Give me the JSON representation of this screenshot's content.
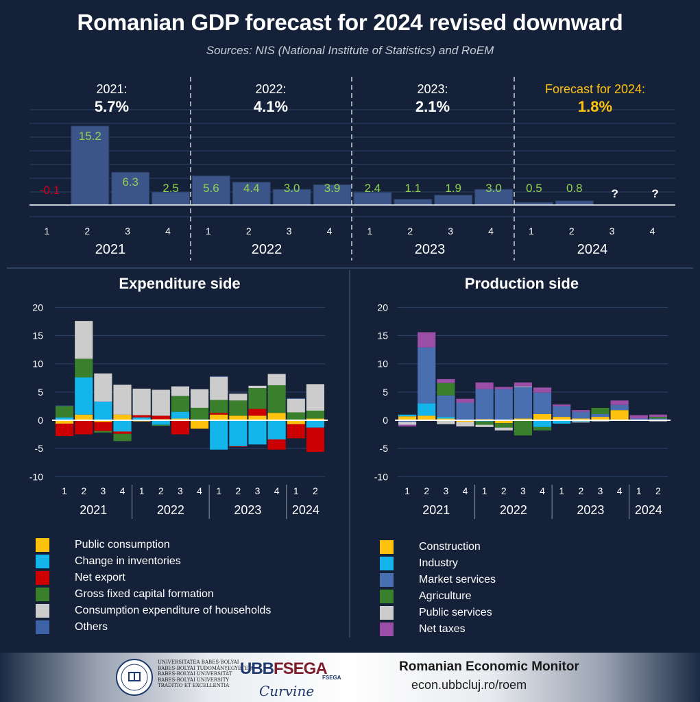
{
  "header": {
    "title": "Romanian GDP forecast for 2024 revised downward",
    "subtitle": "Sources: NIS (National Institute of Statistics) and RoEM"
  },
  "colors": {
    "background": "#142138",
    "bar_blue": "#3b5588",
    "value_green": "#8fd14f",
    "value_red": "#d0021b",
    "forecast_yellow": "#ffc20e",
    "public_consumption": "#ffc20e",
    "change_in_inventories": "#13b5ea",
    "net_export": "#cc0000",
    "gross_fixed_capital_formation": "#3a7f2c",
    "consumption_households": "#cccccc",
    "others": "#3d63a6",
    "construction": "#ffc20e",
    "industry": "#13b5ea",
    "market_services": "#4a6fb0",
    "agriculture": "#3a7f2c",
    "public_services": "#cccccc",
    "net_taxes": "#9b4ea6"
  },
  "annual_summary": [
    {
      "label": "2021:",
      "value": "5.7%",
      "highlight": false
    },
    {
      "label": "2022:",
      "value": "4.1%",
      "highlight": false
    },
    {
      "label": "2023:",
      "value": "2.1%",
      "highlight": false
    },
    {
      "label": "Forecast for 2024:",
      "value": "1.8%",
      "highlight": true
    }
  ],
  "quarter_labels": [
    "1",
    "2",
    "3",
    "4"
  ],
  "year_labels": [
    "2021",
    "2022",
    "2023",
    "2024"
  ],
  "unknown_marker": "?",
  "chart_data": [
    {
      "type": "bar",
      "title": "",
      "categories": [
        "2021 Q1",
        "2021 Q2",
        "2021 Q3",
        "2021 Q4",
        "2022 Q1",
        "2022 Q2",
        "2022 Q3",
        "2022 Q4",
        "2023 Q1",
        "2023 Q2",
        "2023 Q3",
        "2023 Q4",
        "2024 Q1",
        "2024 Q2",
        "2024 Q3",
        "2024 Q4"
      ],
      "values": [
        -0.1,
        15.2,
        6.3,
        2.5,
        5.6,
        4.4,
        3.0,
        3.9,
        2.4,
        1.1,
        1.9,
        3.0,
        0.5,
        0.8,
        null,
        null
      ],
      "value_labels": [
        "-0.1",
        "15.2",
        "6.3",
        "2.5",
        "5.6",
        "4.4",
        "3.0",
        "3.9",
        "2.4",
        "1.1",
        "1.9",
        "3.0",
        "0.5",
        "0.8",
        "?",
        "?"
      ],
      "grid": true
    },
    {
      "type": "bar",
      "stacked": true,
      "title": "Expenditure side",
      "categories": [
        "2021 Q1",
        "2021 Q2",
        "2021 Q3",
        "2021 Q4",
        "2022 Q1",
        "2022 Q2",
        "2022 Q3",
        "2022 Q4",
        "2023 Q1",
        "2023 Q2",
        "2023 Q3",
        "2023 Q4",
        "2024 Q1",
        "2024 Q2"
      ],
      "ylim": [
        -10,
        20
      ],
      "yticks": [
        "-10",
        "-5",
        "0",
        "5",
        "10",
        "15",
        "20"
      ],
      "grid": true,
      "series": [
        {
          "name": "Public consumption",
          "values": [
            -0.6,
            1.0,
            -0.3,
            1.0,
            -0.2,
            0.2,
            0.3,
            -1.5,
            1.0,
            0.8,
            0.8,
            1.3,
            -0.7,
            0.3
          ]
        },
        {
          "name": "Change in inventories",
          "values": [
            0.5,
            6.6,
            3.3,
            -2.0,
            0.5,
            -0.8,
            1.2,
            0.0,
            -5.2,
            -4.6,
            -4.3,
            -3.4,
            0.0,
            -1.3
          ]
        },
        {
          "name": "Net export",
          "values": [
            -2.2,
            -2.5,
            -1.6,
            -0.4,
            0.4,
            0.6,
            -2.5,
            0.0,
            0.3,
            -0.1,
            1.2,
            -1.8,
            -2.5,
            -4.3
          ]
        },
        {
          "name": "Gross fixed capital formation",
          "values": [
            2.0,
            3.3,
            -0.3,
            -1.3,
            0.0,
            -0.2,
            2.8,
            2.2,
            2.3,
            2.7,
            3.7,
            4.9,
            1.4,
            1.4
          ]
        },
        {
          "name": "Consumption expenditure of households",
          "values": [
            0.0,
            6.7,
            5.0,
            5.3,
            4.7,
            4.6,
            1.7,
            3.3,
            4.1,
            1.2,
            0.4,
            2.0,
            2.4,
            4.7
          ]
        },
        {
          "name": "Others",
          "values": [
            0.1,
            0.0,
            0.0,
            0.0,
            0.0,
            0.0,
            0.0,
            0.0,
            0.1,
            0.0,
            0.0,
            0.0,
            0.1,
            0.0
          ]
        }
      ]
    },
    {
      "type": "bar",
      "stacked": true,
      "title": "Production side",
      "categories": [
        "2021 Q1",
        "2021 Q2",
        "2021 Q3",
        "2021 Q4",
        "2022 Q1",
        "2022 Q2",
        "2022 Q3",
        "2022 Q4",
        "2023 Q1",
        "2023 Q2",
        "2023 Q3",
        "2023 Q4",
        "2024 Q1",
        "2024 Q2"
      ],
      "ylim": [
        -10,
        20
      ],
      "yticks": [
        "-10",
        "-5",
        "0",
        "5",
        "10",
        "15",
        "20"
      ],
      "grid": true,
      "series": [
        {
          "name": "Construction",
          "values": [
            0.7,
            0.8,
            0.3,
            -0.3,
            0.2,
            -0.5,
            0.3,
            1.1,
            0.6,
            0.3,
            0.6,
            1.8,
            0.0,
            0.0
          ]
        },
        {
          "name": "Industry",
          "values": [
            0.3,
            2.2,
            0.3,
            0.0,
            -0.2,
            0.0,
            0.0,
            -1.2,
            -0.6,
            -0.2,
            0.0,
            0.0,
            0.1,
            0.1
          ]
        },
        {
          "name": "Market services",
          "values": [
            -0.3,
            9.9,
            3.8,
            3.1,
            5.3,
            5.5,
            5.6,
            3.8,
            1.9,
            1.2,
            0.5,
            0.9,
            0.2,
            0.2
          ]
        },
        {
          "name": "Agriculture",
          "values": [
            0.0,
            0.0,
            2.2,
            0.0,
            -0.6,
            -0.8,
            -2.7,
            -0.6,
            0.0,
            0.0,
            1.1,
            0.0,
            0.0,
            0.3
          ]
        },
        {
          "name": "Public services",
          "values": [
            -0.5,
            0.0,
            -0.7,
            -0.8,
            -0.4,
            -0.5,
            0.1,
            0.0,
            0.0,
            -0.2,
            -0.2,
            0.0,
            0.0,
            -0.2
          ]
        },
        {
          "name": "Net taxes",
          "values": [
            -0.3,
            2.7,
            0.7,
            0.7,
            1.2,
            0.4,
            0.7,
            0.9,
            0.3,
            0.3,
            0.0,
            0.8,
            0.6,
            0.4
          ]
        }
      ]
    }
  ],
  "footer": {
    "university_text": "UNIVERSITATEA BABEȘ-BOLYAI\nBABEȘ-BOLYAI TUDOMÁNYEGYETEM\nBABEȘ-BOLYAI UNIVERSITÄT\nBABEȘ-BOLYAI UNIVERSITY\nTRADITIO ET EXCELLENTIA",
    "fsega_prefix": "UBB",
    "fsega_name": "FSEGA",
    "fsega_small": "FSEGA",
    "signature": "Curvine",
    "monitor_title": "Romanian Economic Monitor",
    "url": "econ.ubbcluj.ro/roem"
  }
}
